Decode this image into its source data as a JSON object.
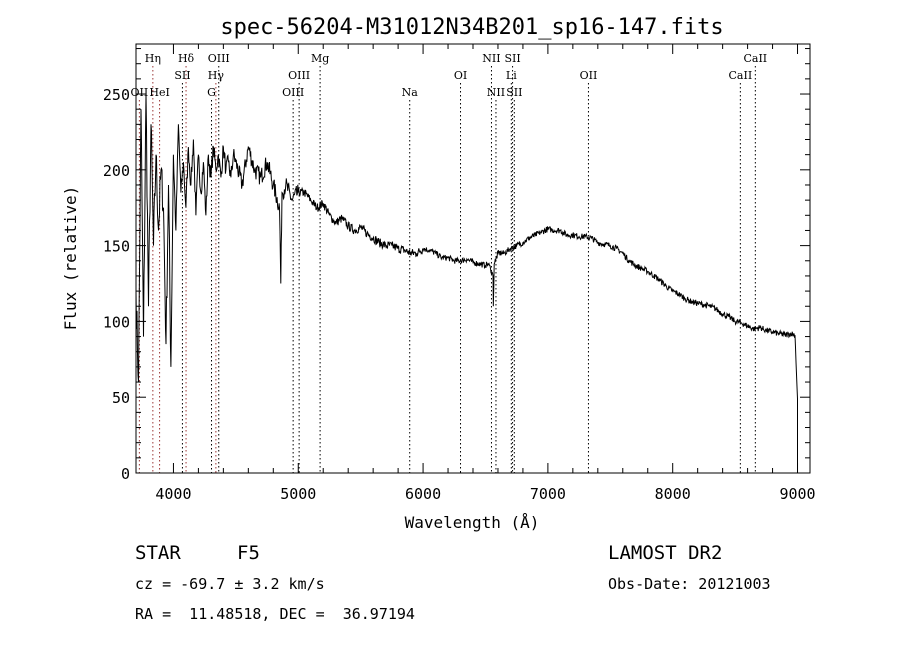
{
  "chart_data": {
    "type": "line",
    "title": "spec-56204-M31012N34B201_sp16-147.fits",
    "xlabel": "Wavelength (Å)",
    "ylabel": "Flux (relative)",
    "xlim": [
      3700,
      9100
    ],
    "ylim": [
      0,
      283
    ],
    "xticks": [
      4000,
      5000,
      6000,
      7000,
      8000,
      9000
    ],
    "yticks": [
      0,
      50,
      100,
      150,
      200,
      250
    ],
    "grid": false,
    "series": [
      {
        "values_description_omitted": "",
        "x": [
          3700,
          3720,
          3740,
          3760,
          3780,
          3800,
          3820,
          3840,
          3860,
          3880,
          3900,
          3920,
          3940,
          3960,
          3980,
          4000,
          4020,
          4040,
          4060,
          4080,
          4100,
          4120,
          4140,
          4160,
          4180,
          4200,
          4220,
          4240,
          4260,
          4280,
          4300,
          4320,
          4340,
          4360,
          4380,
          4400,
          4420,
          4440,
          4460,
          4480,
          4500,
          4550,
          4600,
          4650,
          4700,
          4750,
          4800,
          4850,
          4860,
          4870,
          4900,
          4950,
          5000,
          5050,
          5100,
          5150,
          5200,
          5250,
          5300,
          5350,
          5400,
          5450,
          5500,
          5550,
          5600,
          5650,
          5700,
          5750,
          5800,
          5850,
          5900,
          5950,
          6000,
          6050,
          6100,
          6150,
          6200,
          6250,
          6300,
          6350,
          6400,
          6450,
          6500,
          6520,
          6540,
          6560,
          6563,
          6570,
          6580,
          6600,
          6650,
          6700,
          6750,
          6800,
          6850,
          6900,
          6950,
          7000,
          7050,
          7100,
          7150,
          7200,
          7250,
          7300,
          7350,
          7400,
          7450,
          7500,
          7550,
          7600,
          7650,
          7700,
          7750,
          7800,
          7850,
          7900,
          7950,
          8000,
          8050,
          8100,
          8150,
          8200,
          8250,
          8300,
          8350,
          8400,
          8450,
          8500,
          8550,
          8600,
          8650,
          8700,
          8750,
          8800,
          8850,
          8900,
          8950,
          8980,
          9000
        ],
        "y": [
          120,
          60,
          240,
          90,
          250,
          110,
          230,
          150,
          210,
          160,
          200,
          175,
          85,
          190,
          70,
          210,
          160,
          230,
          185,
          205,
          175,
          215,
          190,
          220,
          170,
          210,
          185,
          205,
          170,
          210,
          195,
          215,
          200,
          210,
          195,
          215,
          200,
          205,
          195,
          210,
          205,
          190,
          215,
          200,
          195,
          205,
          190,
          175,
          125,
          185,
          190,
          180,
          185,
          185,
          180,
          175,
          178,
          170,
          165,
          168,
          163,
          160,
          162,
          158,
          155,
          152,
          150,
          150,
          148,
          147,
          145,
          145,
          148,
          147,
          145,
          142,
          142,
          140,
          140,
          141,
          139,
          138,
          137,
          138,
          135,
          130,
          110,
          138,
          140,
          145,
          145,
          148,
          150,
          152,
          155,
          157,
          159,
          161,
          160,
          160,
          157,
          157,
          156,
          156,
          155,
          152,
          151,
          150,
          148,
          145,
          140,
          137,
          135,
          133,
          130,
          127,
          123,
          120,
          118,
          115,
          113,
          112,
          111,
          110,
          108,
          105,
          103,
          100,
          99,
          97,
          95,
          96,
          94,
          93,
          92,
          91,
          92,
          91,
          49
        ]
      }
    ],
    "line_labels": [
      {
        "label": "Hη",
        "x": 3835,
        "row": 1,
        "color": "#9b3535"
      },
      {
        "label": "OII",
        "x": 3727,
        "row": 3,
        "color": "#9b3535"
      },
      {
        "label": "HeI",
        "x": 3889,
        "row": 3,
        "color": "#9b3535"
      },
      {
        "label": "Hδ",
        "x": 4101,
        "row": 1,
        "color": "#9b3535"
      },
      {
        "label": "SII",
        "x": 4072,
        "row": 2,
        "color": "#000000"
      },
      {
        "label": "OIII",
        "x": 4363,
        "row": 1,
        "color": "#000000"
      },
      {
        "label": "Hγ",
        "x": 4340,
        "row": 2,
        "color": "#9b3535"
      },
      {
        "label": "G",
        "x": 4305,
        "row": 3,
        "color": "#000000"
      },
      {
        "label": "Mg",
        "x": 5175,
        "row": 1,
        "color": "#000000"
      },
      {
        "label": "OIII",
        "x": 5007,
        "row": 2,
        "color": "#000000"
      },
      {
        "label": "OIII",
        "x": 4959,
        "row": 3,
        "color": "#000000"
      },
      {
        "label": "Na",
        "x": 5893,
        "row": 3,
        "color": "#000000"
      },
      {
        "label": "OI",
        "x": 6300,
        "row": 2,
        "color": "#000000"
      },
      {
        "label": "NII",
        "x": 6548,
        "row": 1,
        "color": "#000000"
      },
      {
        "label": "SII",
        "x": 6717,
        "row": 1,
        "color": "#000000"
      },
      {
        "label": "Li",
        "x": 6707,
        "row": 2,
        "color": "#000000"
      },
      {
        "label": "NII",
        "x": 6584,
        "row": 3,
        "color": "#000000"
      },
      {
        "label": "SII",
        "x": 6731,
        "row": 3,
        "color": "#000000"
      },
      {
        "label": "OII",
        "x": 7325,
        "row": 2,
        "color": "#000000"
      },
      {
        "label": "CaII",
        "x": 8662,
        "row": 1,
        "color": "#000000"
      },
      {
        "label": "CaII",
        "x": 8542,
        "row": 2,
        "color": "#000000"
      }
    ]
  },
  "info": {
    "object_class": "STAR",
    "subclass": "F5",
    "survey": "LAMOST DR2",
    "cz": "cz = -69.7 ± 3.2 km/s",
    "obs_date": "Obs-Date: 20121003",
    "coords": "RA =  11.48518, DEC =  36.97194"
  }
}
